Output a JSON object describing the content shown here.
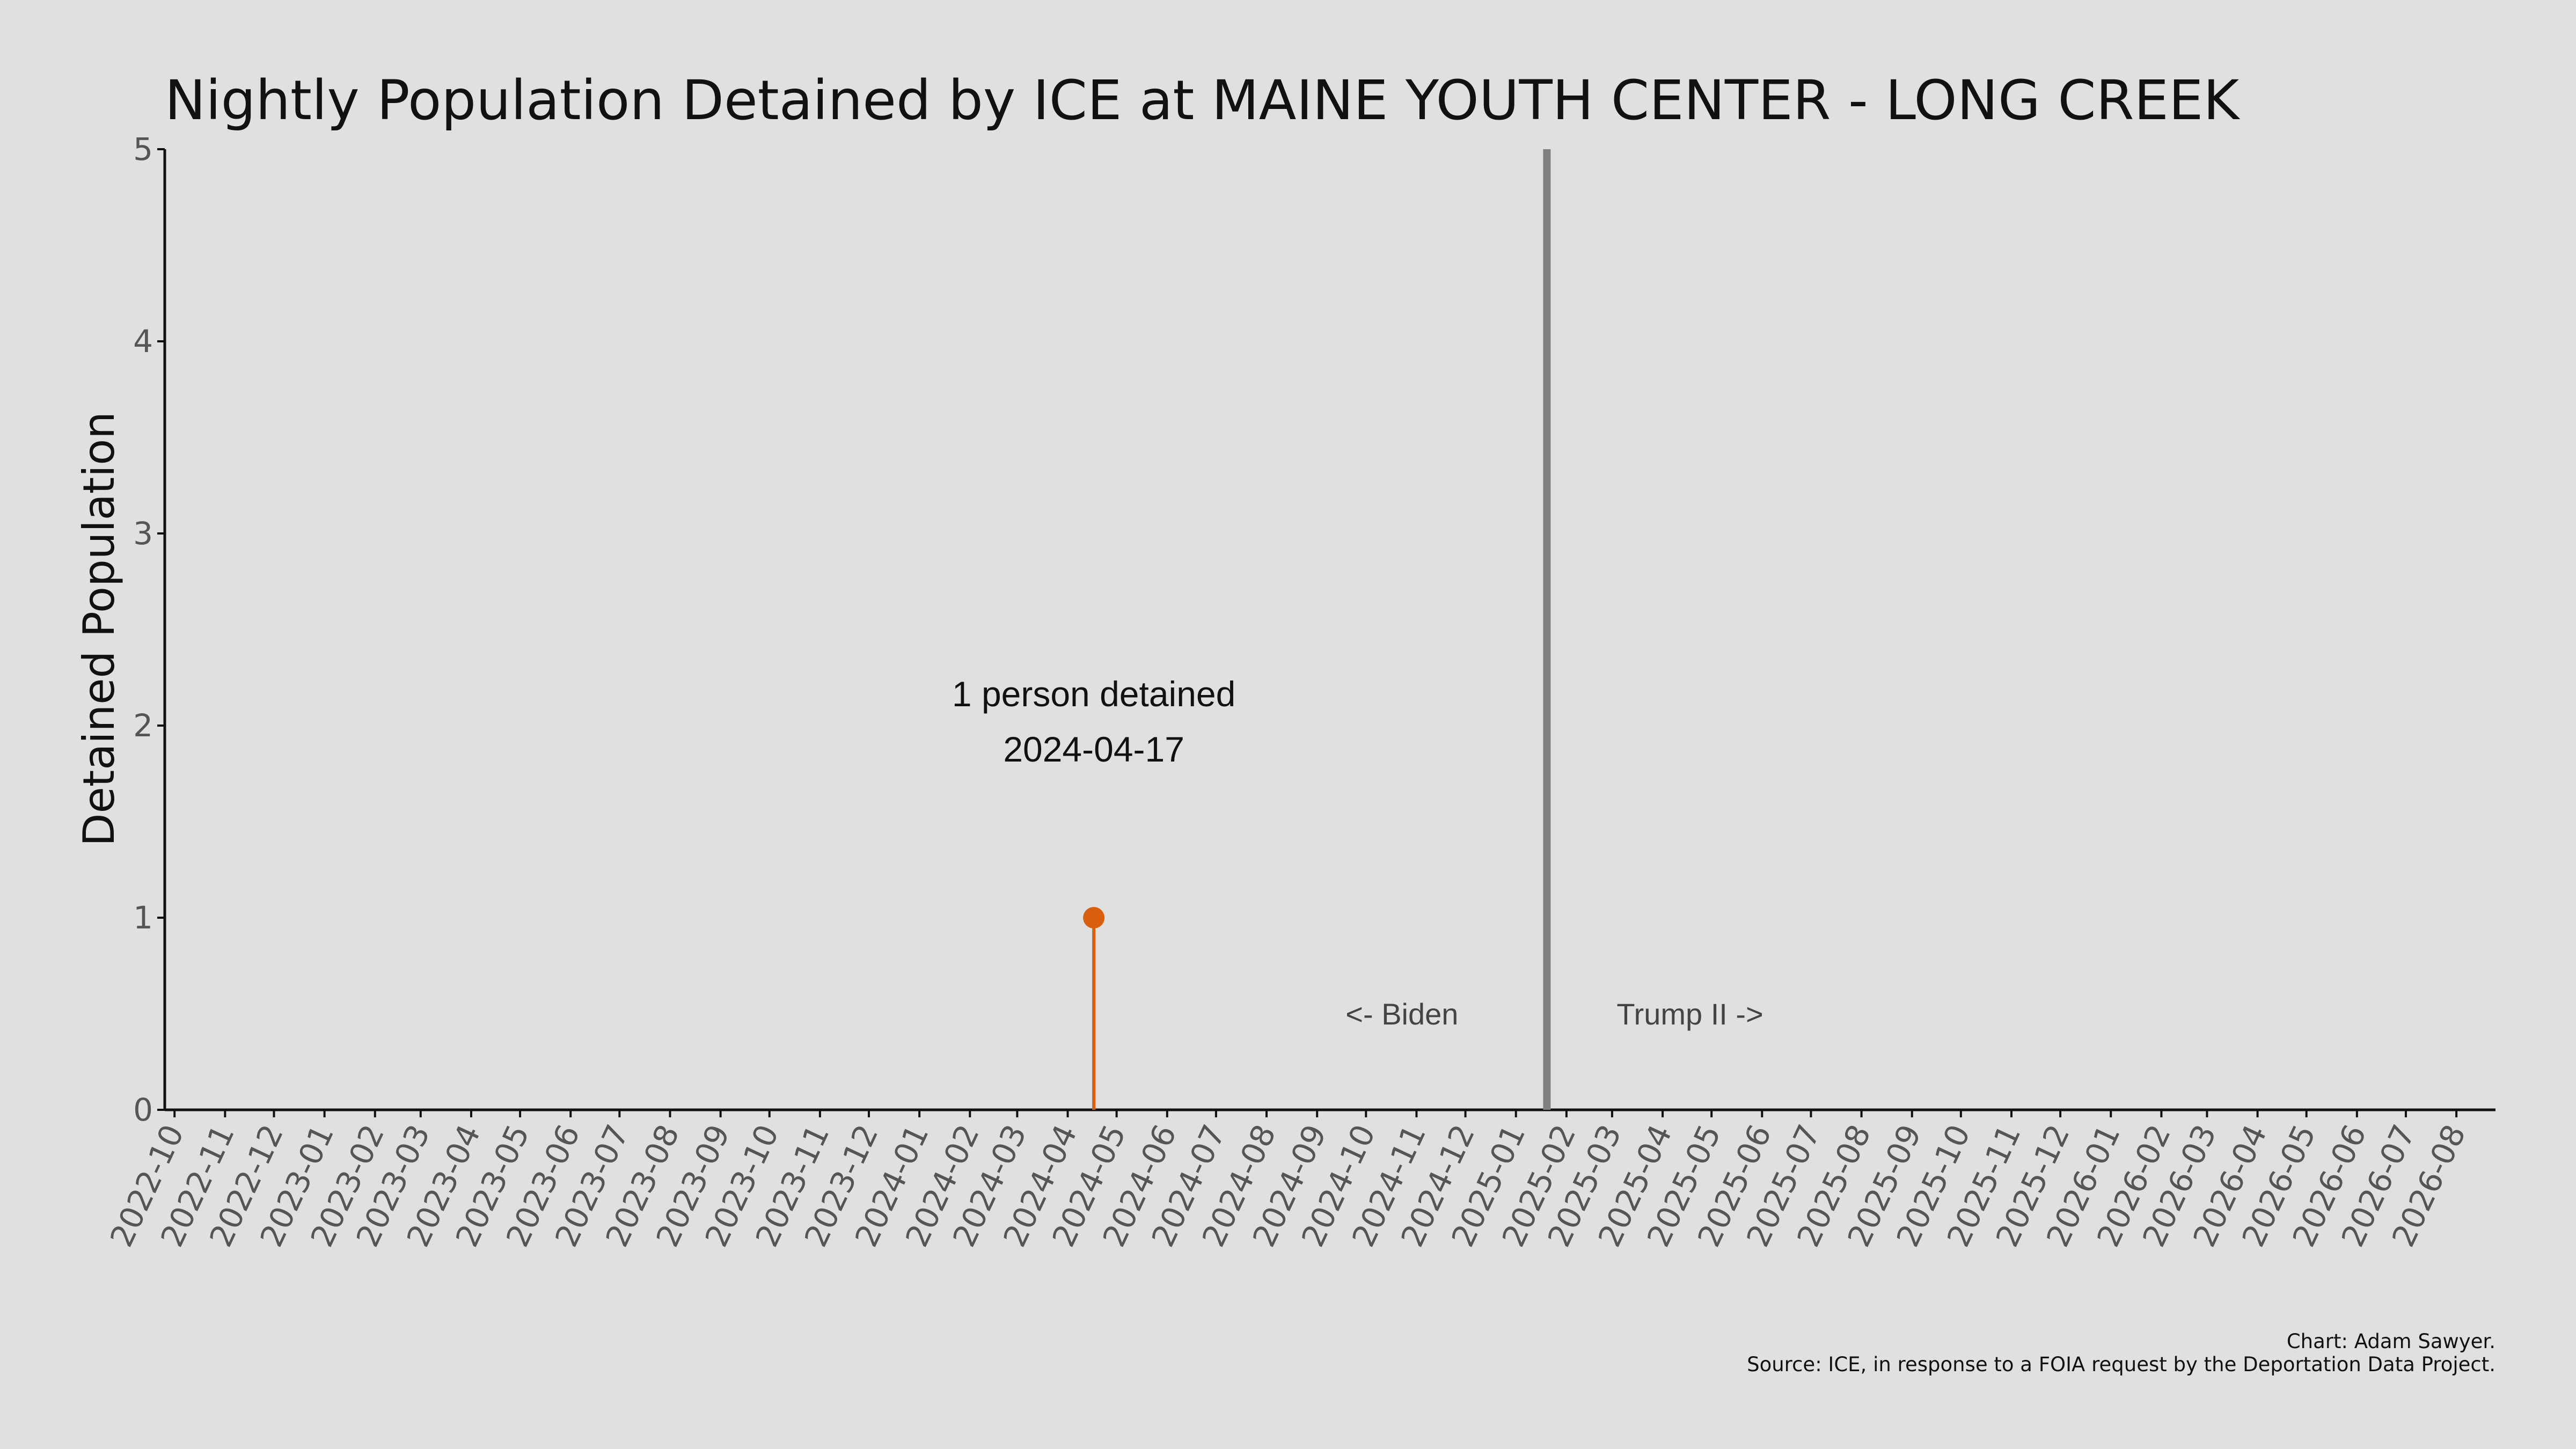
{
  "chart_data": {
    "type": "line",
    "title": "Nightly Population Detained by ICE at MAINE YOUTH CENTER - LONG CREEK",
    "xlabel": "",
    "ylabel": "Detained Population",
    "x_ticks": [
      "2022-10",
      "2022-11",
      "2022-12",
      "2023-01",
      "2023-02",
      "2023-03",
      "2023-04",
      "2023-05",
      "2023-06",
      "2023-07",
      "2023-08",
      "2023-09",
      "2023-10",
      "2023-11",
      "2023-12",
      "2024-01",
      "2024-02",
      "2024-03",
      "2024-04",
      "2024-05",
      "2024-06",
      "2024-07",
      "2024-08",
      "2024-09",
      "2024-10",
      "2024-11",
      "2024-12",
      "2025-01",
      "2025-02",
      "2025-03",
      "2025-04",
      "2025-05",
      "2025-06",
      "2025-07",
      "2025-08",
      "2025-09",
      "2025-10",
      "2025-11",
      "2025-12",
      "2026-01",
      "2026-02",
      "2026-03",
      "2026-04",
      "2026-05",
      "2026-06",
      "2026-07",
      "2026-08"
    ],
    "xlim": [
      "2022-09-25",
      "2026-08-25"
    ],
    "ylim": [
      0,
      5
    ],
    "y_ticks": [
      "0",
      "1",
      "2",
      "3",
      "4",
      "5"
    ],
    "grid": false,
    "series": [
      {
        "points": [
          {
            "x": "2024-04-17",
            "y": 1
          }
        ],
        "color": "#d95f0e"
      }
    ],
    "peak_annotation": {
      "line1": "1 person detained",
      "line2": "2024-04-17"
    },
    "divider": {
      "x": "2025-01-20",
      "color": "#808080"
    },
    "era_labels": {
      "left": "<- Biden",
      "right": "Trump II ->"
    },
    "credits": {
      "line1": "Chart: Adam Sawyer.",
      "line2": "Source: ICE, in response to a FOIA request by the Deportation Data Project."
    }
  }
}
